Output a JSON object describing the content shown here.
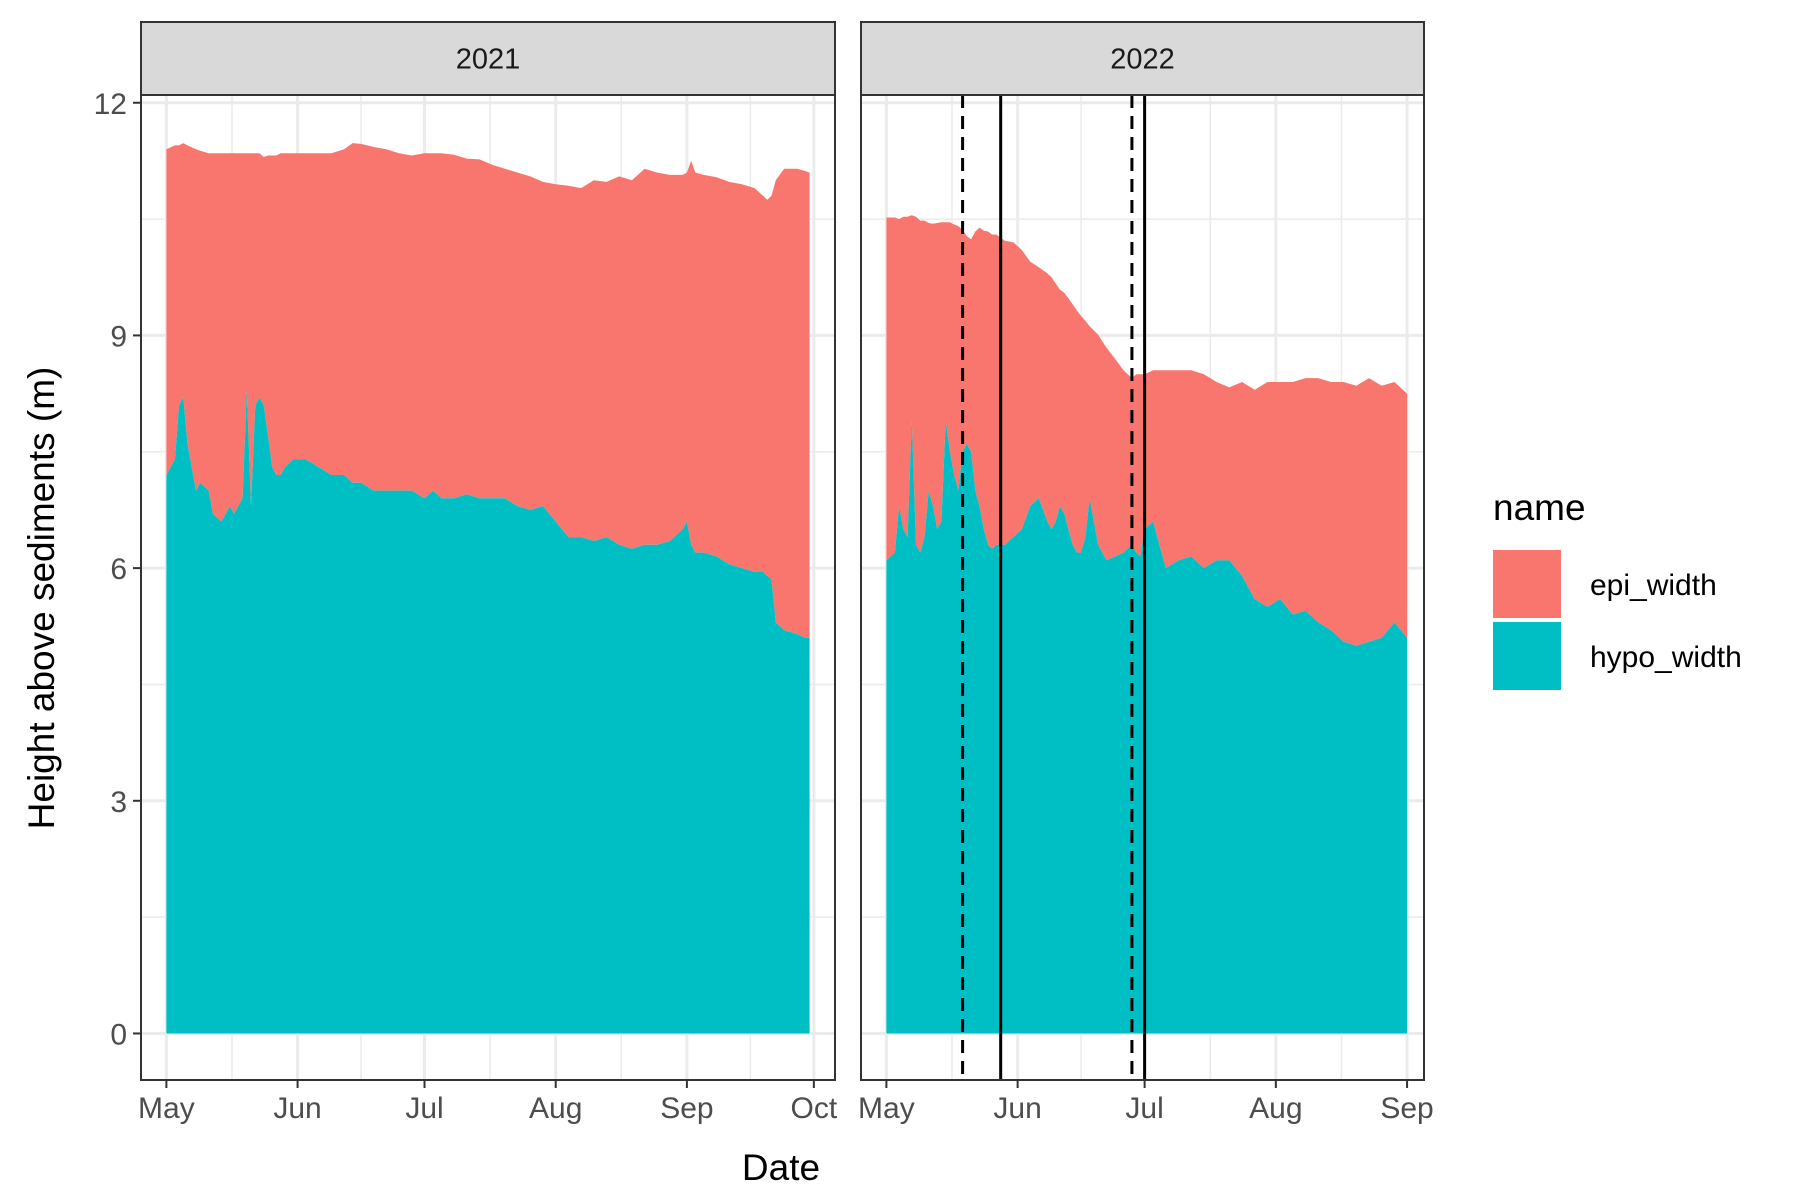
{
  "chart_data": {
    "type": "area",
    "stacked": true,
    "xlabel": "Date",
    "ylabel": "Height above sediments (m)",
    "ylim": [
      -0.6,
      12.1
    ],
    "yticks": [
      0,
      3,
      6,
      9,
      12
    ],
    "y_minor_gridlines": [
      1.5,
      4.5,
      7.5,
      10.5
    ],
    "grid": true,
    "legend": {
      "title": "name",
      "position": "right",
      "entries": [
        {
          "name": "epi_width",
          "color": "#F8766D"
        },
        {
          "name": "hypo_width",
          "color": "#00BFC4"
        }
      ]
    },
    "colors": {
      "epi_width": "#F8766D",
      "hypo_width": "#00BFC4",
      "strip": "#D9D9D9",
      "grid": "#EBEBEB",
      "panel_border": "#333333"
    },
    "panels": [
      {
        "strip": "2021",
        "xlim": [
          "2021-04-25",
          "2021-10-06"
        ],
        "xticks": [
          {
            "date": "2021-05-01",
            "label": "May"
          },
          {
            "date": "2021-06-01",
            "label": "Jun"
          },
          {
            "date": "2021-07-01",
            "label": "Jul"
          },
          {
            "date": "2021-08-01",
            "label": "Aug"
          },
          {
            "date": "2021-09-01",
            "label": "Sep"
          },
          {
            "date": "2021-10-01",
            "label": "Oct"
          }
        ],
        "x": [
          "2021-05-01",
          "2021-05-03",
          "2021-05-04",
          "2021-05-05",
          "2021-05-06",
          "2021-05-08",
          "2021-05-09",
          "2021-05-11",
          "2021-05-12",
          "2021-05-14",
          "2021-05-16",
          "2021-05-17",
          "2021-05-18",
          "2021-05-19",
          "2021-05-20",
          "2021-05-21",
          "2021-05-22",
          "2021-05-23",
          "2021-05-24",
          "2021-05-25",
          "2021-05-26",
          "2021-05-27",
          "2021-05-28",
          "2021-05-29",
          "2021-05-31",
          "2021-06-03",
          "2021-06-06",
          "2021-06-09",
          "2021-06-12",
          "2021-06-14",
          "2021-06-16",
          "2021-06-19",
          "2021-06-22",
          "2021-06-25",
          "2021-06-28",
          "2021-07-01",
          "2021-07-03",
          "2021-07-05",
          "2021-07-08",
          "2021-07-11",
          "2021-07-14",
          "2021-07-17",
          "2021-07-20",
          "2021-07-23",
          "2021-07-26",
          "2021-07-29",
          "2021-08-01",
          "2021-08-04",
          "2021-08-07",
          "2021-08-10",
          "2021-08-13",
          "2021-08-16",
          "2021-08-19",
          "2021-08-22",
          "2021-08-25",
          "2021-08-28",
          "2021-08-31",
          "2021-09-01",
          "2021-09-02",
          "2021-09-03",
          "2021-09-05",
          "2021-09-08",
          "2021-09-11",
          "2021-09-14",
          "2021-09-17",
          "2021-09-19",
          "2021-09-20",
          "2021-09-21",
          "2021-09-22",
          "2021-09-24",
          "2021-09-27",
          "2021-09-29",
          "2021-09-30"
        ],
        "series": [
          {
            "name": "hypo_width",
            "values": [
              7.2,
              7.4,
              8.1,
              8.2,
              7.6,
              7.0,
              7.1,
              7.0,
              6.7,
              6.6,
              6.8,
              6.7,
              6.8,
              6.9,
              8.3,
              6.8,
              8.1,
              8.2,
              8.1,
              7.7,
              7.3,
              7.2,
              7.2,
              7.3,
              7.4,
              7.4,
              7.3,
              7.2,
              7.2,
              7.1,
              7.1,
              7.0,
              7.0,
              7.0,
              7.0,
              6.9,
              7.0,
              6.9,
              6.9,
              6.95,
              6.9,
              6.9,
              6.9,
              6.8,
              6.75,
              6.8,
              6.6,
              6.4,
              6.4,
              6.35,
              6.4,
              6.3,
              6.25,
              6.3,
              6.3,
              6.35,
              6.5,
              6.6,
              6.3,
              6.2,
              6.2,
              6.15,
              6.05,
              6.0,
              5.95,
              5.95,
              5.9,
              5.85,
              5.3,
              5.2,
              5.15,
              5.1,
              5.1
            ]
          },
          {
            "name": "epi_width",
            "values": [
              4.2,
              4.05,
              3.35,
              3.28,
              3.85,
              4.4,
              4.28,
              4.35,
              4.65,
              4.75,
              4.55,
              4.65,
              4.55,
              4.45,
              3.05,
              4.55,
              3.25,
              3.15,
              3.2,
              3.62,
              4.02,
              4.12,
              4.15,
              4.05,
              3.95,
              3.95,
              4.05,
              4.15,
              4.2,
              4.38,
              4.37,
              4.43,
              4.4,
              4.35,
              4.32,
              4.45,
              4.35,
              4.45,
              4.43,
              4.33,
              4.37,
              4.3,
              4.25,
              4.3,
              4.3,
              4.18,
              4.35,
              4.53,
              4.5,
              4.65,
              4.58,
              4.75,
              4.75,
              4.85,
              4.8,
              4.72,
              4.57,
              4.5,
              4.95,
              4.9,
              4.87,
              4.89,
              4.93,
              4.95,
              4.95,
              4.85,
              4.85,
              4.95,
              5.7,
              5.95,
              6.0,
              6.02,
              6.0
            ]
          }
        ],
        "vlines": []
      },
      {
        "strip": "2022",
        "xlim": [
          "2022-04-25",
          "2022-09-05"
        ],
        "xticks": [
          {
            "date": "2022-05-01",
            "label": "May"
          },
          {
            "date": "2022-06-01",
            "label": "Jun"
          },
          {
            "date": "2022-07-01",
            "label": "Jul"
          },
          {
            "date": "2022-08-01",
            "label": "Aug"
          },
          {
            "date": "2022-09-01",
            "label": "Sep"
          }
        ],
        "x": [
          "2022-05-01",
          "2022-05-03",
          "2022-05-04",
          "2022-05-05",
          "2022-05-06",
          "2022-05-07",
          "2022-05-08",
          "2022-05-09",
          "2022-05-10",
          "2022-05-11",
          "2022-05-12",
          "2022-05-13",
          "2022-05-14",
          "2022-05-15",
          "2022-05-16",
          "2022-05-17",
          "2022-05-18",
          "2022-05-19",
          "2022-05-20",
          "2022-05-21",
          "2022-05-22",
          "2022-05-23",
          "2022-05-24",
          "2022-05-25",
          "2022-05-26",
          "2022-05-27",
          "2022-05-29",
          "2022-05-31",
          "2022-06-02",
          "2022-06-04",
          "2022-06-06",
          "2022-06-08",
          "2022-06-09",
          "2022-06-10",
          "2022-06-11",
          "2022-06-12",
          "2022-06-13",
          "2022-06-14",
          "2022-06-15",
          "2022-06-16",
          "2022-06-17",
          "2022-06-18",
          "2022-06-20",
          "2022-06-22",
          "2022-06-24",
          "2022-06-26",
          "2022-06-28",
          "2022-06-29",
          "2022-06-30",
          "2022-07-01",
          "2022-07-03",
          "2022-07-06",
          "2022-07-09",
          "2022-07-12",
          "2022-07-15",
          "2022-07-18",
          "2022-07-21",
          "2022-07-24",
          "2022-07-27",
          "2022-07-30",
          "2022-08-02",
          "2022-08-05",
          "2022-08-08",
          "2022-08-11",
          "2022-08-14",
          "2022-08-17",
          "2022-08-20",
          "2022-08-23",
          "2022-08-26",
          "2022-08-29",
          "2022-09-01"
        ],
        "series": [
          {
            "name": "hypo_width",
            "values": [
              6.1,
              6.2,
              6.8,
              6.5,
              6.4,
              7.9,
              6.3,
              6.2,
              6.4,
              7.0,
              6.8,
              6.5,
              6.6,
              7.9,
              7.5,
              7.2,
              7.0,
              7.5,
              7.6,
              7.5,
              7.0,
              6.8,
              6.5,
              6.3,
              6.25,
              6.3,
              6.3,
              6.4,
              6.5,
              6.8,
              6.9,
              6.6,
              6.5,
              6.6,
              6.8,
              6.7,
              6.5,
              6.3,
              6.2,
              6.2,
              6.4,
              6.9,
              6.3,
              6.1,
              6.15,
              6.2,
              6.3,
              6.2,
              6.15,
              6.5,
              6.6,
              6.0,
              6.1,
              6.15,
              6.0,
              6.1,
              6.1,
              5.9,
              5.6,
              5.5,
              5.6,
              5.4,
              5.45,
              5.3,
              5.2,
              5.05,
              5.0,
              5.05,
              5.1,
              5.3,
              5.1
            ]
          },
          {
            "name": "epi_width",
            "values": [
              4.42,
              4.32,
              3.7,
              4.03,
              4.13,
              2.65,
              4.23,
              4.28,
              4.08,
              3.45,
              3.64,
              3.95,
              3.86,
              2.56,
              2.96,
              3.23,
              3.41,
              2.86,
              2.68,
              2.74,
              3.34,
              3.59,
              3.85,
              4.04,
              4.05,
              4.0,
              3.92,
              3.8,
              3.6,
              3.15,
              2.98,
              3.2,
              3.25,
              3.07,
              2.79,
              2.85,
              2.98,
              3.1,
              3.12,
              3.05,
              2.79,
              2.22,
              2.71,
              2.74,
              2.55,
              2.35,
              2.15,
              2.3,
              2.35,
              2.0,
              1.95,
              2.55,
              2.45,
              2.4,
              2.5,
              2.3,
              2.23,
              2.5,
              2.7,
              2.9,
              2.8,
              3.0,
              3.0,
              3.15,
              3.2,
              3.35,
              3.35,
              3.4,
              3.25,
              3.1,
              3.15
            ]
          }
        ],
        "vlines": [
          {
            "date": "2022-05-19",
            "style": "dashed"
          },
          {
            "date": "2022-05-28",
            "style": "solid"
          },
          {
            "date": "2022-06-28",
            "style": "dashed"
          },
          {
            "date": "2022-07-01",
            "style": "solid"
          }
        ]
      }
    ]
  }
}
